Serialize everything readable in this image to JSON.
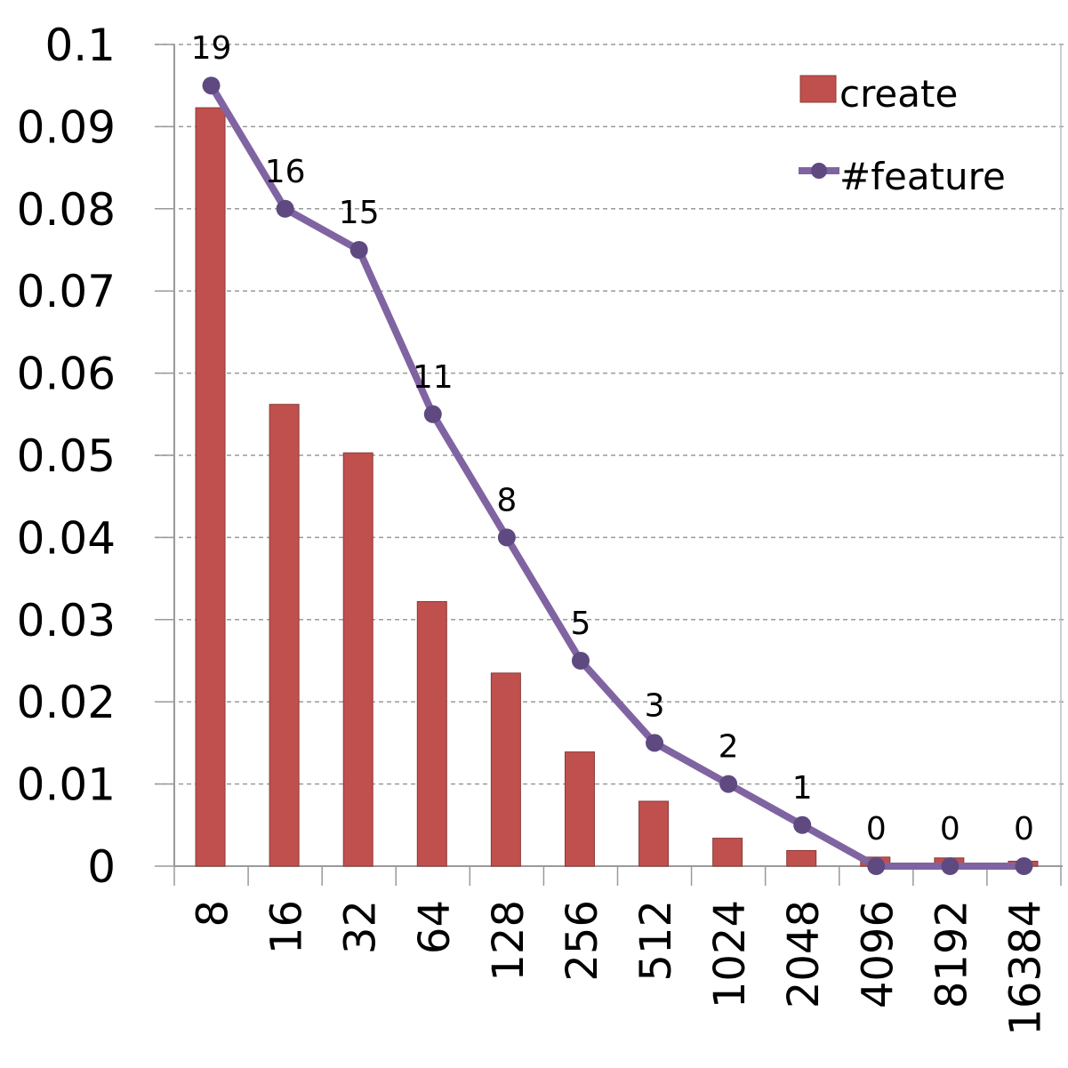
{
  "chart_data": {
    "type": "bar",
    "categories": [
      "8",
      "16",
      "32",
      "64",
      "128",
      "256",
      "512",
      "1024",
      "2048",
      "4096",
      "8192",
      "16384"
    ],
    "series": [
      {
        "name": "create",
        "type": "bar",
        "color": "#C0504D",
        "values": [
          0.0923,
          0.0562,
          0.0503,
          0.0322,
          0.0235,
          0.0139,
          0.0079,
          0.0034,
          0.0019,
          0.0011,
          0.001,
          0.0006
        ]
      },
      {
        "name": "#feature",
        "type": "line",
        "color": "#8064A2",
        "values": [
          0.095,
          0.08,
          0.075,
          0.055,
          0.04,
          0.025,
          0.015,
          0.01,
          0.005,
          0.0,
          0.0,
          0.0
        ],
        "labels": [
          "19",
          "16",
          "15",
          "11",
          "8",
          "5",
          "3",
          "2",
          "1",
          "0",
          "0",
          "0"
        ]
      }
    ],
    "yticks": [
      "0",
      "0.01",
      "0.02",
      "0.03",
      "0.04",
      "0.05",
      "0.06",
      "0.07",
      "0.08",
      "0.09",
      "0.1"
    ],
    "ylim": [
      0,
      0.1
    ],
    "grid": true,
    "legend_position": "top-right"
  }
}
